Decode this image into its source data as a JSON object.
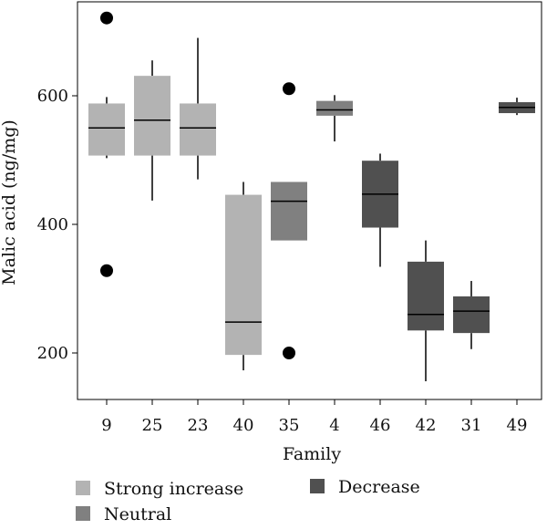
{
  "chart_data": {
    "type": "box",
    "xlabel": "Family",
    "ylabel": "Malic acid (ng/mg)",
    "ylim": [
      130,
      745
    ],
    "yticks": [
      200,
      400,
      600
    ],
    "grid": false,
    "legend_position": "bottom",
    "series": [
      {
        "name": "Strong increase",
        "color": "#b3b3b3"
      },
      {
        "name": "Neutral",
        "color": "#808080"
      },
      {
        "name": "Decrease",
        "color": "#505050"
      }
    ],
    "boxes": [
      {
        "family": "9",
        "group": "Strong increase",
        "min": 503,
        "q1": 507,
        "median": 550,
        "q3": 588,
        "max": 598,
        "outliers": [
          721,
          328
        ]
      },
      {
        "family": "25",
        "group": "Strong increase",
        "min": 437,
        "q1": 507,
        "median": 562,
        "q3": 631,
        "max": 655,
        "outliers": []
      },
      {
        "family": "23",
        "group": "Strong increase",
        "min": 470,
        "q1": 507,
        "median": 550,
        "q3": 588,
        "max": 690,
        "outliers": []
      },
      {
        "family": "40",
        "group": "Strong increase",
        "min": 173,
        "q1": 197,
        "median": 248,
        "q3": 446,
        "max": 466,
        "outliers": []
      },
      {
        "family": "35",
        "group": "Neutral",
        "min": 375,
        "q1": 375,
        "median": 436,
        "q3": 466,
        "max": 466,
        "outliers": [
          611,
          200
        ]
      },
      {
        "family": "4",
        "group": "Neutral",
        "min": 529,
        "q1": 569,
        "median": 578,
        "q3": 592,
        "max": 601,
        "outliers": []
      },
      {
        "family": "46",
        "group": "Decrease",
        "min": 334,
        "q1": 395,
        "median": 447,
        "q3": 499,
        "max": 510,
        "outliers": []
      },
      {
        "family": "42",
        "group": "Decrease",
        "min": 156,
        "q1": 235,
        "median": 260,
        "q3": 342,
        "max": 375,
        "outliers": []
      },
      {
        "family": "31",
        "group": "Decrease",
        "min": 206,
        "q1": 231,
        "median": 265,
        "q3": 288,
        "max": 312,
        "outliers": []
      },
      {
        "family": "49",
        "group": "Decrease",
        "min": 570,
        "q1": 573,
        "median": 582,
        "q3": 590,
        "max": 597,
        "outliers": []
      }
    ]
  }
}
